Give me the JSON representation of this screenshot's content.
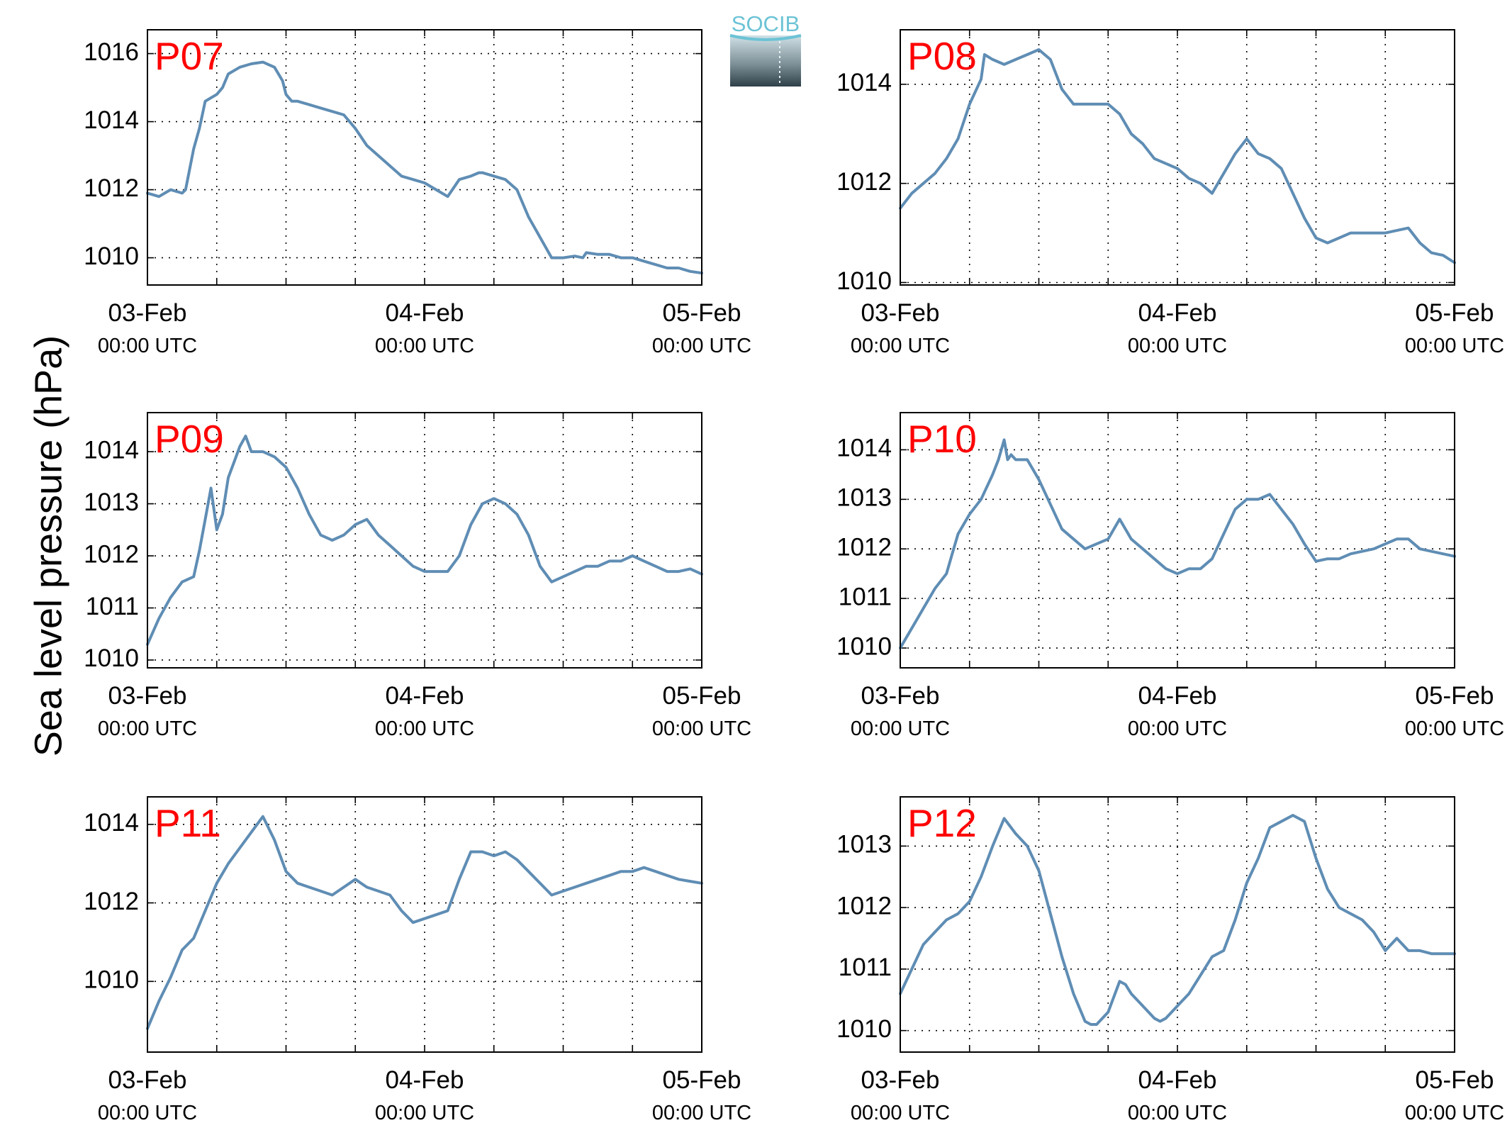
{
  "ylabel": "Sea level pressure (hPa)",
  "logo_text": "SOCIB",
  "colors": {
    "series": "#5f8db4",
    "label": "#ff0000",
    "logo_top": "#6cc3d5"
  },
  "chart_data": [
    {
      "type": "line",
      "title": "P07",
      "x_tick_labels": [
        "03-Feb",
        "04-Feb",
        "05-Feb"
      ],
      "x_tick_sublabels": [
        "00:00 UTC",
        "00:00 UTC",
        "00:00 UTC"
      ],
      "x_unit": "hours since 03-Feb 00:00 UTC",
      "xlim": [
        0,
        48
      ],
      "ylim": [
        1009.2,
        1016.7
      ],
      "yticks": [
        1010,
        1012,
        1014,
        1016
      ],
      "grid": true,
      "series": [
        {
          "x": [
            0,
            1,
            2,
            3,
            3.3,
            4,
            4.5,
            5,
            5.5,
            6,
            6.5,
            7,
            8,
            9,
            10,
            11,
            11.7,
            12,
            12.5,
            13,
            14,
            15,
            16,
            17,
            18,
            19,
            20,
            21,
            22,
            23,
            24,
            25,
            26,
            27,
            28,
            28.7,
            29,
            30,
            31,
            32,
            33,
            34,
            35,
            36,
            37,
            37.7,
            38,
            39,
            40,
            41,
            42,
            43,
            44,
            45,
            46,
            47,
            48
          ],
          "y": [
            1011.9,
            1011.8,
            1012.0,
            1011.9,
            1012.0,
            1013.2,
            1013.8,
            1014.6,
            1014.7,
            1014.8,
            1015.0,
            1015.4,
            1015.6,
            1015.7,
            1015.75,
            1015.6,
            1015.2,
            1014.8,
            1014.6,
            1014.6,
            1014.5,
            1014.4,
            1014.3,
            1014.2,
            1013.8,
            1013.3,
            1013.0,
            1012.7,
            1012.4,
            1012.3,
            1012.2,
            1012.0,
            1011.8,
            1012.3,
            1012.4,
            1012.5,
            1012.5,
            1012.4,
            1012.3,
            1012.0,
            1011.2,
            1010.6,
            1010.0,
            1010.0,
            1010.05,
            1010.0,
            1010.15,
            1010.1,
            1010.1,
            1010.0,
            1010.0,
            1009.9,
            1009.8,
            1009.7,
            1009.7,
            1009.6,
            1009.55
          ]
        }
      ]
    },
    {
      "type": "line",
      "title": "P08",
      "x_tick_labels": [
        "03-Feb",
        "04-Feb",
        "05-Feb"
      ],
      "x_tick_sublabels": [
        "00:00 UTC",
        "00:00 UTC",
        "00:00 UTC"
      ],
      "x_unit": "hours since 03-Feb 00:00 UTC",
      "xlim": [
        0,
        48
      ],
      "ylim": [
        1009.95,
        1015.1
      ],
      "yticks": [
        1010,
        1012,
        1014
      ],
      "grid": true,
      "series": [
        {
          "x": [
            0,
            1,
            2,
            3,
            4,
            5,
            6,
            7,
            7.3,
            8,
            9,
            10,
            11,
            12,
            13,
            14,
            15,
            16,
            17,
            18,
            19,
            20,
            21,
            22,
            23,
            24,
            25,
            26,
            27,
            28,
            29,
            30,
            31,
            32,
            33,
            34,
            35,
            36,
            37,
            38,
            39,
            40,
            41,
            42,
            43,
            44,
            45,
            46,
            47,
            48
          ],
          "y": [
            1011.5,
            1011.8,
            1012.0,
            1012.2,
            1012.5,
            1012.9,
            1013.6,
            1014.1,
            1014.6,
            1014.5,
            1014.4,
            1014.5,
            1014.6,
            1014.7,
            1014.5,
            1013.9,
            1013.6,
            1013.6,
            1013.6,
            1013.6,
            1013.4,
            1013.0,
            1012.8,
            1012.5,
            1012.4,
            1012.3,
            1012.1,
            1012.0,
            1011.8,
            1012.2,
            1012.6,
            1012.9,
            1012.6,
            1012.5,
            1012.3,
            1011.8,
            1011.3,
            1010.9,
            1010.8,
            1010.9,
            1011.0,
            1011.0,
            1011.0,
            1011.0,
            1011.05,
            1011.1,
            1010.8,
            1010.6,
            1010.55,
            1010.4
          ]
        }
      ]
    },
    {
      "type": "line",
      "title": "P09",
      "x_tick_labels": [
        "03-Feb",
        "04-Feb",
        "05-Feb"
      ],
      "x_tick_sublabels": [
        "00:00 UTC",
        "00:00 UTC",
        "00:00 UTC"
      ],
      "x_unit": "hours since 03-Feb 00:00 UTC",
      "xlim": [
        0,
        48
      ],
      "ylim": [
        1009.85,
        1014.75
      ],
      "yticks": [
        1010,
        1011,
        1012,
        1013,
        1014
      ],
      "grid": true,
      "series": [
        {
          "x": [
            0,
            1,
            2,
            3,
            4,
            4.5,
            5,
            5.5,
            6,
            6.5,
            7,
            7.5,
            8,
            8.5,
            9,
            9.5,
            10,
            11,
            12,
            13,
            14,
            15,
            16,
            17,
            18,
            19,
            20,
            21,
            22,
            23,
            24,
            25,
            26,
            27,
            28,
            29,
            30,
            31,
            32,
            33,
            34,
            35,
            36,
            37,
            38,
            39,
            40,
            41,
            42,
            43,
            44,
            45,
            46,
            47,
            48
          ],
          "y": [
            1010.3,
            1010.8,
            1011.2,
            1011.5,
            1011.6,
            1012.1,
            1012.7,
            1013.3,
            1012.5,
            1012.8,
            1013.5,
            1013.8,
            1014.1,
            1014.3,
            1014.0,
            1014.0,
            1014.0,
            1013.9,
            1013.7,
            1013.3,
            1012.8,
            1012.4,
            1012.3,
            1012.4,
            1012.6,
            1012.7,
            1012.4,
            1012.2,
            1012.0,
            1011.8,
            1011.7,
            1011.7,
            1011.7,
            1012.0,
            1012.6,
            1013.0,
            1013.1,
            1013.0,
            1012.8,
            1012.4,
            1011.8,
            1011.5,
            1011.6,
            1011.7,
            1011.8,
            1011.8,
            1011.9,
            1011.9,
            1012.0,
            1011.9,
            1011.8,
            1011.7,
            1011.7,
            1011.75,
            1011.65
          ]
        }
      ]
    },
    {
      "type": "line",
      "title": "P10",
      "x_tick_labels": [
        "03-Feb",
        "04-Feb",
        "05-Feb"
      ],
      "x_tick_sublabels": [
        "00:00 UTC",
        "00:00 UTC",
        "00:00 UTC"
      ],
      "x_unit": "hours since 03-Feb 00:00 UTC",
      "xlim": [
        0,
        48
      ],
      "ylim": [
        1009.6,
        1014.75
      ],
      "yticks": [
        1010,
        1011,
        1012,
        1013,
        1014
      ],
      "grid": true,
      "series": [
        {
          "x": [
            0,
            1,
            2,
            3,
            4,
            4.5,
            5,
            6,
            7,
            8,
            8.5,
            9,
            9.3,
            9.6,
            10,
            11,
            12,
            13,
            14,
            15,
            16,
            17,
            18,
            19,
            20,
            21,
            22,
            23,
            24,
            25,
            26,
            27,
            28,
            29,
            30,
            31,
            32,
            33,
            34,
            35,
            36,
            37,
            38,
            39,
            40,
            41,
            42,
            43,
            44,
            45,
            46,
            47,
            48
          ],
          "y": [
            1010.0,
            1010.4,
            1010.8,
            1011.2,
            1011.5,
            1011.9,
            1012.3,
            1012.7,
            1013.0,
            1013.5,
            1013.8,
            1014.2,
            1013.8,
            1013.9,
            1013.8,
            1013.8,
            1013.4,
            1012.9,
            1012.4,
            1012.2,
            1012.0,
            1012.1,
            1012.2,
            1012.6,
            1012.2,
            1012.0,
            1011.8,
            1011.6,
            1011.5,
            1011.6,
            1011.6,
            1011.8,
            1012.3,
            1012.8,
            1013.0,
            1013.0,
            1013.1,
            1012.8,
            1012.5,
            1012.1,
            1011.75,
            1011.8,
            1011.8,
            1011.9,
            1011.95,
            1012.0,
            1012.1,
            1012.2,
            1012.2,
            1012.0,
            1011.95,
            1011.9,
            1011.85
          ]
        }
      ]
    },
    {
      "type": "line",
      "title": "P11",
      "x_tick_labels": [
        "03-Feb",
        "04-Feb",
        "05-Feb"
      ],
      "x_tick_sublabels": [
        "00:00 UTC",
        "00:00 UTC",
        "00:00 UTC"
      ],
      "x_unit": "hours since 03-Feb 00:00 UTC",
      "xlim": [
        0,
        48
      ],
      "ylim": [
        1008.2,
        1014.7
      ],
      "yticks": [
        1010,
        1012,
        1014
      ],
      "grid": true,
      "series": [
        {
          "x": [
            0,
            1,
            2,
            3,
            4,
            5,
            6,
            7,
            8,
            9,
            10,
            11,
            12,
            13,
            14,
            15,
            16,
            17,
            18,
            19,
            20,
            21,
            22,
            23,
            24,
            25,
            26,
            27,
            28,
            29,
            30,
            31,
            32,
            33,
            34,
            35,
            36,
            37,
            38,
            39,
            40,
            41,
            42,
            43,
            44,
            45,
            46,
            47,
            48
          ],
          "y": [
            1008.8,
            1009.5,
            1010.1,
            1010.8,
            1011.1,
            1011.8,
            1012.5,
            1013.0,
            1013.4,
            1013.8,
            1014.2,
            1013.6,
            1012.8,
            1012.5,
            1012.4,
            1012.3,
            1012.2,
            1012.4,
            1012.6,
            1012.4,
            1012.3,
            1012.2,
            1011.8,
            1011.5,
            1011.6,
            1011.7,
            1011.8,
            1012.6,
            1013.3,
            1013.3,
            1013.2,
            1013.3,
            1013.1,
            1012.8,
            1012.5,
            1012.2,
            1012.3,
            1012.4,
            1012.5,
            1012.6,
            1012.7,
            1012.8,
            1012.8,
            1012.9,
            1012.8,
            1012.7,
            1012.6,
            1012.55,
            1012.5
          ]
        }
      ]
    },
    {
      "type": "line",
      "title": "P12",
      "x_tick_labels": [
        "03-Feb",
        "04-Feb",
        "05-Feb"
      ],
      "x_tick_sublabels": [
        "00:00 UTC",
        "00:00 UTC",
        "00:00 UTC"
      ],
      "x_unit": "hours since 03-Feb 00:00 UTC",
      "xlim": [
        0,
        48
      ],
      "ylim": [
        1009.65,
        1013.8
      ],
      "yticks": [
        1010,
        1011,
        1012,
        1013
      ],
      "grid": true,
      "series": [
        {
          "x": [
            0,
            1,
            2,
            3,
            4,
            5,
            6,
            7,
            8,
            9,
            10,
            11,
            12,
            13,
            14,
            15,
            16,
            16.5,
            17,
            18,
            19,
            19.5,
            20,
            21,
            22,
            22.5,
            23,
            24,
            25,
            26,
            27,
            28,
            29,
            30,
            31,
            32,
            33,
            34,
            35,
            36,
            37,
            38,
            39,
            40,
            41,
            42,
            43,
            44,
            45,
            46,
            47,
            48
          ],
          "y": [
            1010.6,
            1011.0,
            1011.4,
            1011.6,
            1011.8,
            1011.9,
            1012.1,
            1012.5,
            1013.0,
            1013.45,
            1013.2,
            1013.0,
            1012.6,
            1011.9,
            1011.2,
            1010.6,
            1010.15,
            1010.1,
            1010.1,
            1010.3,
            1010.8,
            1010.75,
            1010.6,
            1010.4,
            1010.2,
            1010.15,
            1010.2,
            1010.4,
            1010.6,
            1010.9,
            1011.2,
            1011.3,
            1011.8,
            1012.4,
            1012.8,
            1013.3,
            1013.4,
            1013.5,
            1013.4,
            1012.8,
            1012.3,
            1012.0,
            1011.9,
            1011.8,
            1011.6,
            1011.3,
            1011.5,
            1011.3,
            1011.3,
            1011.25,
            1011.25,
            1011.25
          ]
        }
      ]
    }
  ]
}
